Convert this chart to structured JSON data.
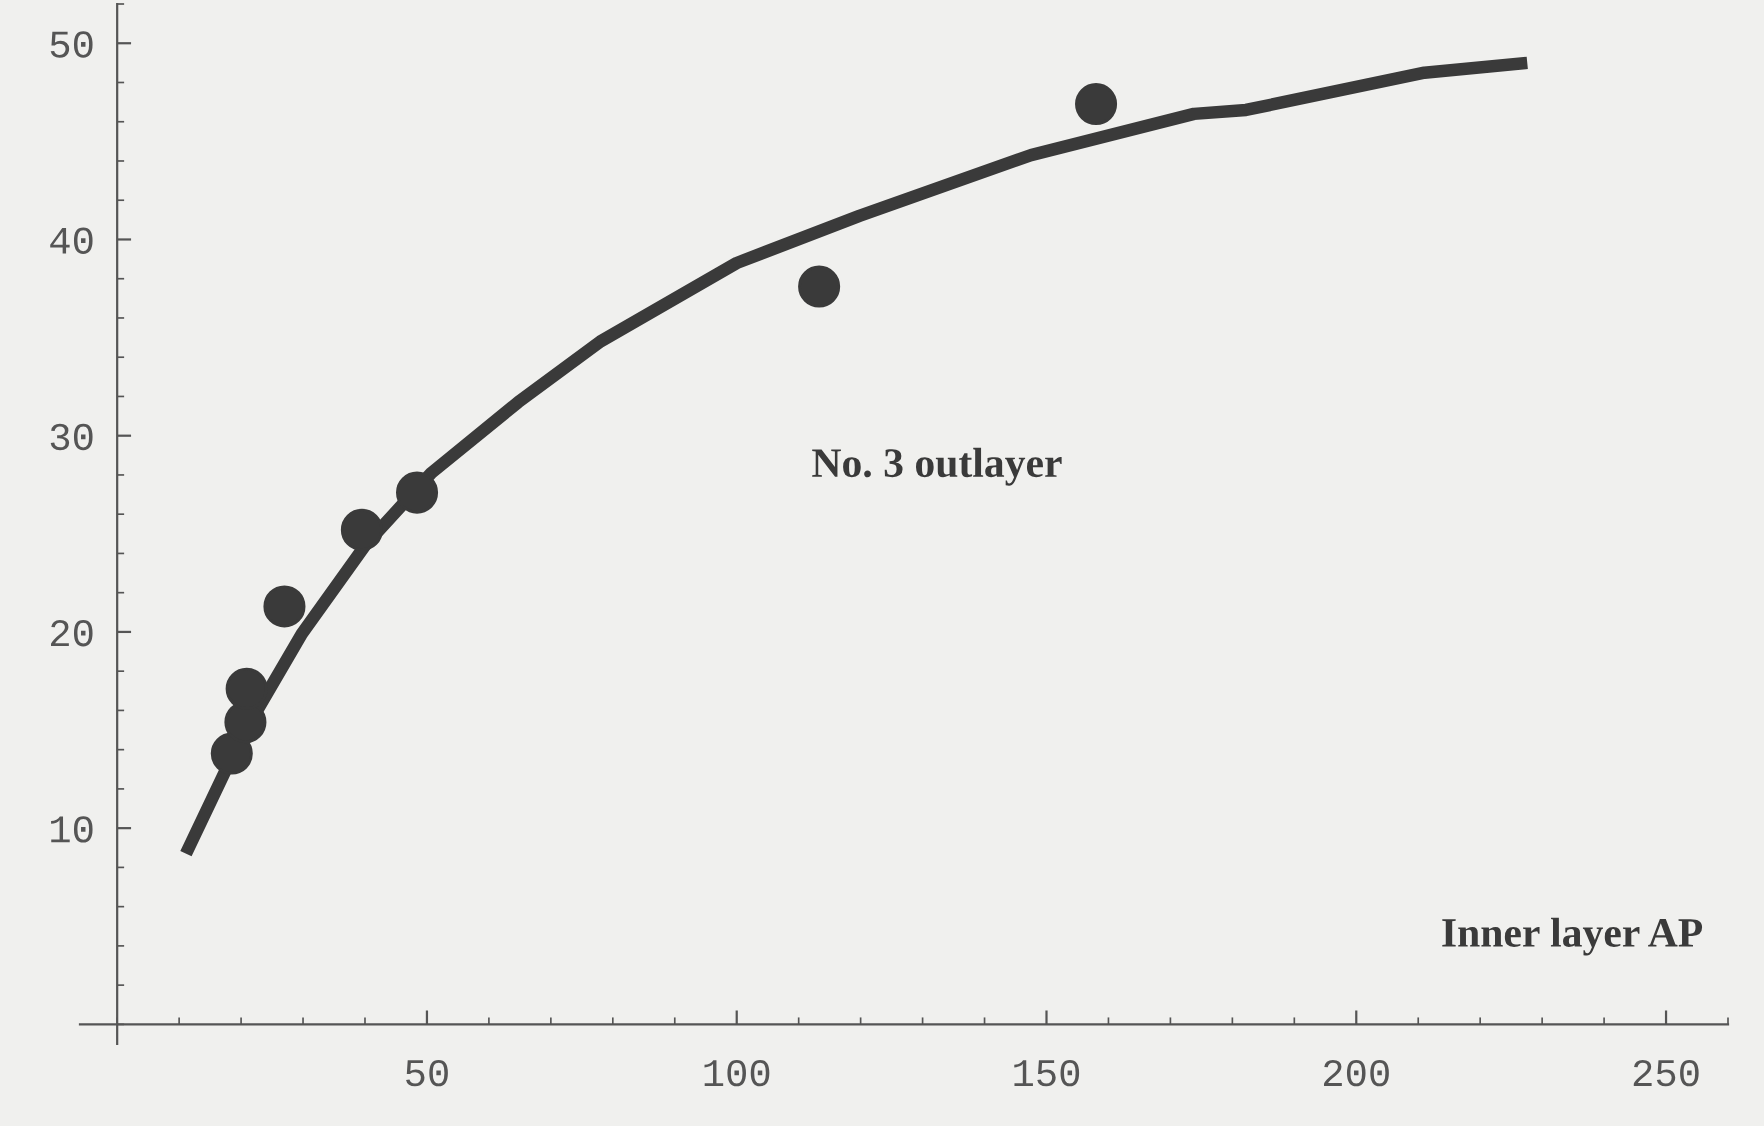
{
  "chart_data": {
    "type": "scatter",
    "xlabel": "Inner layer AP",
    "annotations": [
      "No. 3 outlayer"
    ],
    "series": [
      {
        "color": "#3a3a3a",
        "marker": "circle",
        "x": [
          18.5,
          20.7,
          20.9,
          27,
          39.5,
          48.4,
          113.3,
          158
        ],
        "values": [
          13.8,
          15.4,
          17.1,
          21.3,
          25.2,
          27.1,
          37.6,
          46.9
        ]
      },
      {
        "type": "line",
        "color": "#3a3a3a",
        "marker": "none",
        "line_style": "solid",
        "x": [
          11.1,
          20,
          29.8,
          40,
          50.7,
          64.7,
          78,
          100,
          119.8,
          147.5,
          173.8,
          182.2,
          211,
          227.6
        ],
        "values": [
          8.7,
          14.6,
          19.9,
          24.4,
          28.1,
          31.7,
          34.8,
          38.8,
          41.2,
          44.3,
          46.4,
          46.6,
          48.5,
          49.0
        ]
      }
    ],
    "xlim": [
      -6,
      260
    ],
    "ylim": [
      -1,
      52
    ],
    "xticks": [
      50,
      100,
      150,
      200,
      250
    ],
    "yticks": [
      10,
      20,
      30,
      40,
      50
    ],
    "grid": false,
    "legend": false
  }
}
